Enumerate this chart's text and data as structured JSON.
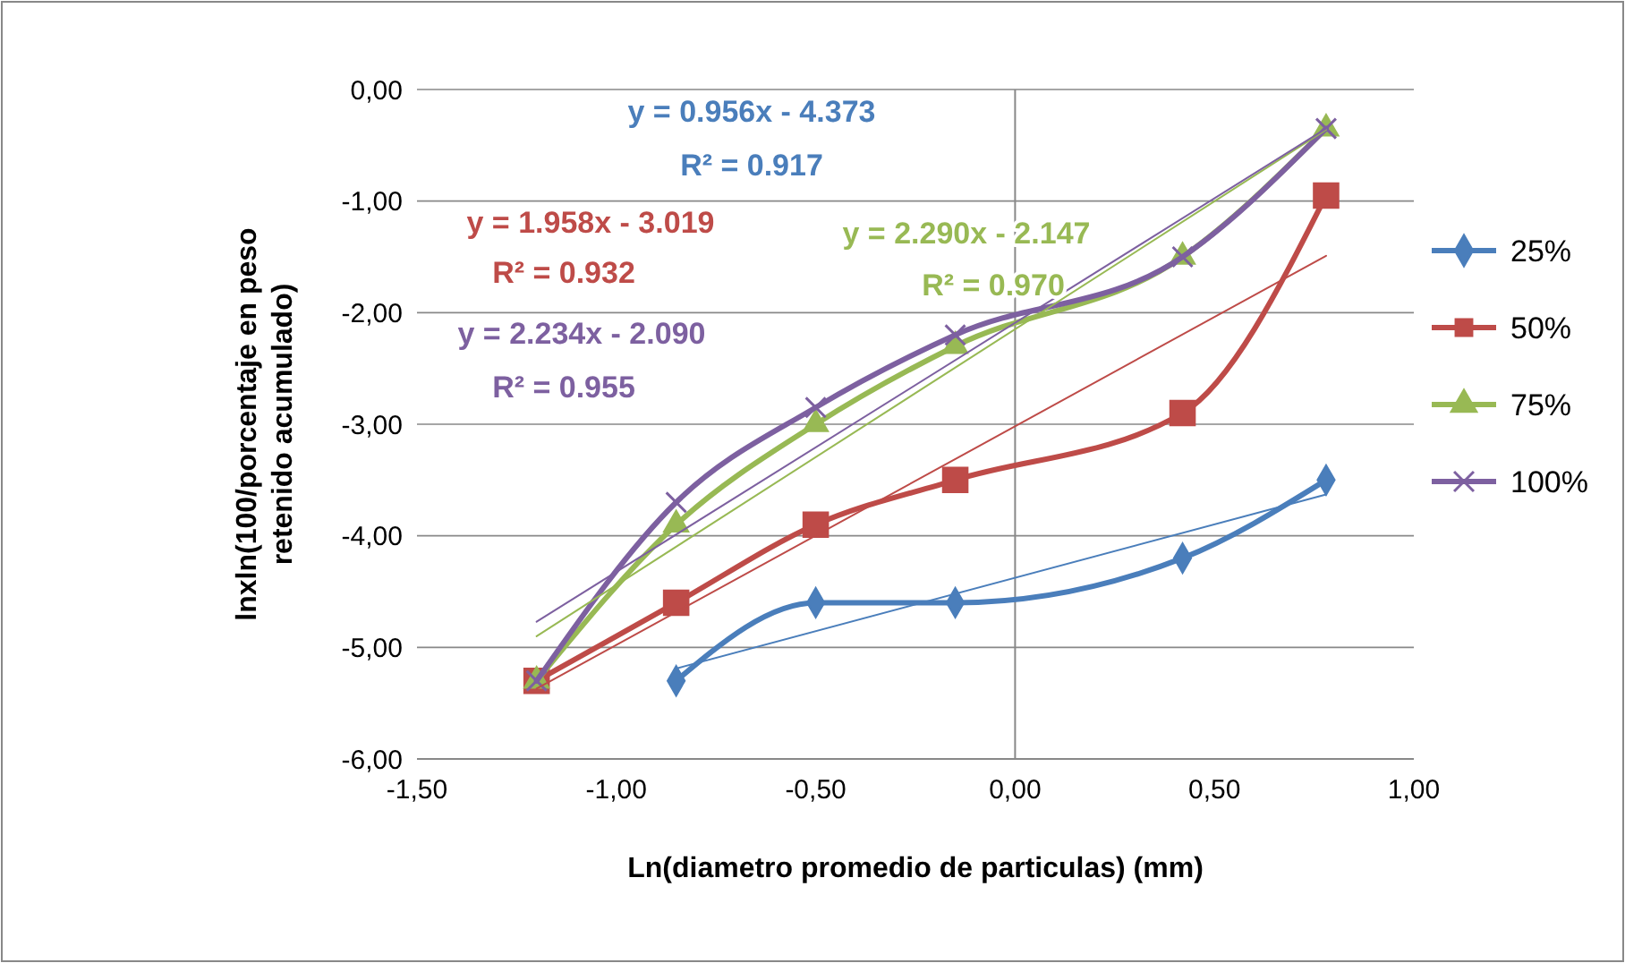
{
  "chart_data": {
    "type": "line",
    "xlabel": "Ln(diametro promedio de particulas) (mm)",
    "ylabel": "lnxln(100/porcentaje en peso retenido acumulado)",
    "xlim": [
      -1.5,
      1.0
    ],
    "ylim": [
      -6,
      0
    ],
    "xticks": [
      {
        "value": -1.5,
        "label": "-1,50"
      },
      {
        "value": -1.0,
        "label": "-1,00"
      },
      {
        "value": -0.5,
        "label": "-0,50"
      },
      {
        "value": 0,
        "label": "0,00"
      },
      {
        "value": 0.5,
        "label": "0,50"
      },
      {
        "value": 1.0,
        "label": "1,00"
      }
    ],
    "yticks": [
      {
        "value": -6,
        "label": "-6,00"
      },
      {
        "value": -5,
        "label": "-5,00"
      },
      {
        "value": -4,
        "label": "-4,00"
      },
      {
        "value": -3,
        "label": "-3,00"
      },
      {
        "value": -2,
        "label": "-2,00"
      },
      {
        "value": -1,
        "label": "-1,00"
      },
      {
        "value": 0,
        "label": "0,00"
      }
    ],
    "grid": "y",
    "legend": "right",
    "series": [
      {
        "name": "25%",
        "color": "#4a7ebb",
        "marker": "diamond",
        "x": [
          -0.85,
          -0.5,
          -0.15,
          0.42,
          0.78
        ],
        "values": [
          -5.3,
          -4.6,
          -4.6,
          -4.2,
          -3.5
        ]
      },
      {
        "name": "50%",
        "color": "#be4b48",
        "marker": "square",
        "x": [
          -1.2,
          -0.85,
          -0.5,
          -0.15,
          0.42,
          0.78
        ],
        "values": [
          -5.3,
          -4.6,
          -3.9,
          -3.5,
          -2.9,
          -0.95
        ]
      },
      {
        "name": "75%",
        "color": "#98b954",
        "marker": "triangle",
        "x": [
          -1.2,
          -0.85,
          -0.5,
          -0.15,
          0.42,
          0.78
        ],
        "values": [
          -5.3,
          -3.9,
          -3.0,
          -2.3,
          -1.5,
          -0.35
        ]
      },
      {
        "name": "100%",
        "color": "#7d60a0",
        "marker": "cross",
        "x": [
          -1.2,
          -0.85,
          -0.5,
          -0.15,
          0.42,
          0.78
        ],
        "values": [
          -5.3,
          -3.7,
          -2.85,
          -2.2,
          -1.5,
          -0.35
        ]
      },
      {
        "color": "#4a7ebb",
        "marker": "none",
        "x": [
          -0.85,
          0.78
        ],
        "values": [
          -5.19,
          -3.63
        ]
      },
      {
        "color": "#be4b48",
        "marker": "none",
        "x": [
          -1.2,
          0.78
        ],
        "values": [
          -5.37,
          -1.49
        ]
      },
      {
        "color": "#98b954",
        "marker": "none",
        "x": [
          -1.2,
          0.78
        ],
        "values": [
          -4.9,
          -0.36
        ]
      },
      {
        "color": "#7d60a0",
        "marker": "none",
        "x": [
          -1.2,
          0.78
        ],
        "values": [
          -4.77,
          -0.35
        ]
      }
    ],
    "annotations": [
      "y = 0.956x - 4.373",
      "R² = 0.917",
      "y = 1.958x - 3.019",
      "R² = 0.932",
      "y = 2.290x - 2.147",
      "R² = 0.970",
      "y = 2.234x - 2.090",
      "R² = 0.955"
    ]
  }
}
